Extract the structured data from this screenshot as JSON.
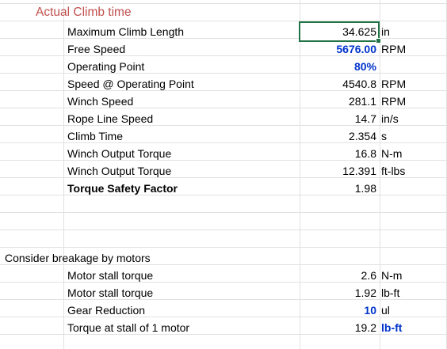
{
  "title": "Actual Climb time",
  "rows": [
    {
      "label": "Maximum Climb Length",
      "value": "34.625",
      "unit": "in"
    },
    {
      "label": "Free Speed",
      "value": "5676.00",
      "unit": "RPM"
    },
    {
      "label": "Operating Point",
      "value": "80%",
      "unit": ""
    },
    {
      "label": "Speed @ Operating Point",
      "value": "4540.8",
      "unit": "RPM"
    },
    {
      "label": "Winch Speed",
      "value": "281.1",
      "unit": "RPM"
    },
    {
      "label": "Rope Line Speed",
      "value": "14.7",
      "unit": "in/s"
    },
    {
      "label": "Climb Time",
      "value": "2.354",
      "unit": "s"
    },
    {
      "label": "Winch Output Torque",
      "value": "16.8",
      "unit": "N-m"
    },
    {
      "label": "Winch Output Torque",
      "value": "12.391",
      "unit": "ft-lbs"
    },
    {
      "label": "Torque Safety Factor",
      "value": "1.98",
      "unit": ""
    }
  ],
  "section2": {
    "title": "Consider breakage by motors",
    "rows": [
      {
        "label": "Motor stall torque",
        "value": "2.6",
        "unit": "N-m"
      },
      {
        "label": "Motor stall torque",
        "value": "1.92",
        "unit": "lb-ft"
      },
      {
        "label": "Gear Reduction",
        "value": "10",
        "unit": "ul"
      },
      {
        "label": "Torque at stall of 1 motor",
        "value": "19.2",
        "unit": "lb-ft"
      }
    ]
  },
  "colors": {
    "title": "#c0504d",
    "input_blue": "#0033cc",
    "selection": "#217346"
  }
}
